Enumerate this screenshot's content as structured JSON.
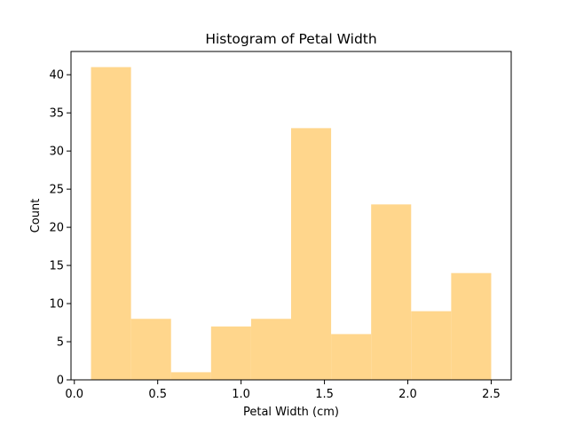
{
  "chart_data": {
    "type": "bar",
    "title": "Histogram of Petal Width",
    "xlabel": "Petal Width (cm)",
    "ylabel": "Count",
    "bin_edges": [
      0.1,
      0.34,
      0.58,
      0.82,
      1.06,
      1.3,
      1.54,
      1.78,
      2.02,
      2.26,
      2.5
    ],
    "values": [
      41,
      8,
      1,
      7,
      8,
      33,
      6,
      23,
      9,
      14
    ],
    "xlim": [
      -0.02,
      2.62
    ],
    "ylim": [
      0,
      43.05
    ],
    "xticks": [
      0.0,
      0.5,
      1.0,
      1.5,
      2.0,
      2.5
    ],
    "xtick_labels": [
      "0.0",
      "0.5",
      "1.0",
      "1.5",
      "2.0",
      "2.5"
    ],
    "yticks": [
      0,
      5,
      10,
      15,
      20,
      25,
      30,
      35,
      40
    ],
    "ytick_labels": [
      "0",
      "5",
      "10",
      "15",
      "20",
      "25",
      "30",
      "35",
      "40"
    ],
    "bar_color": "#FFD68C",
    "grid": false,
    "legend": "none"
  }
}
